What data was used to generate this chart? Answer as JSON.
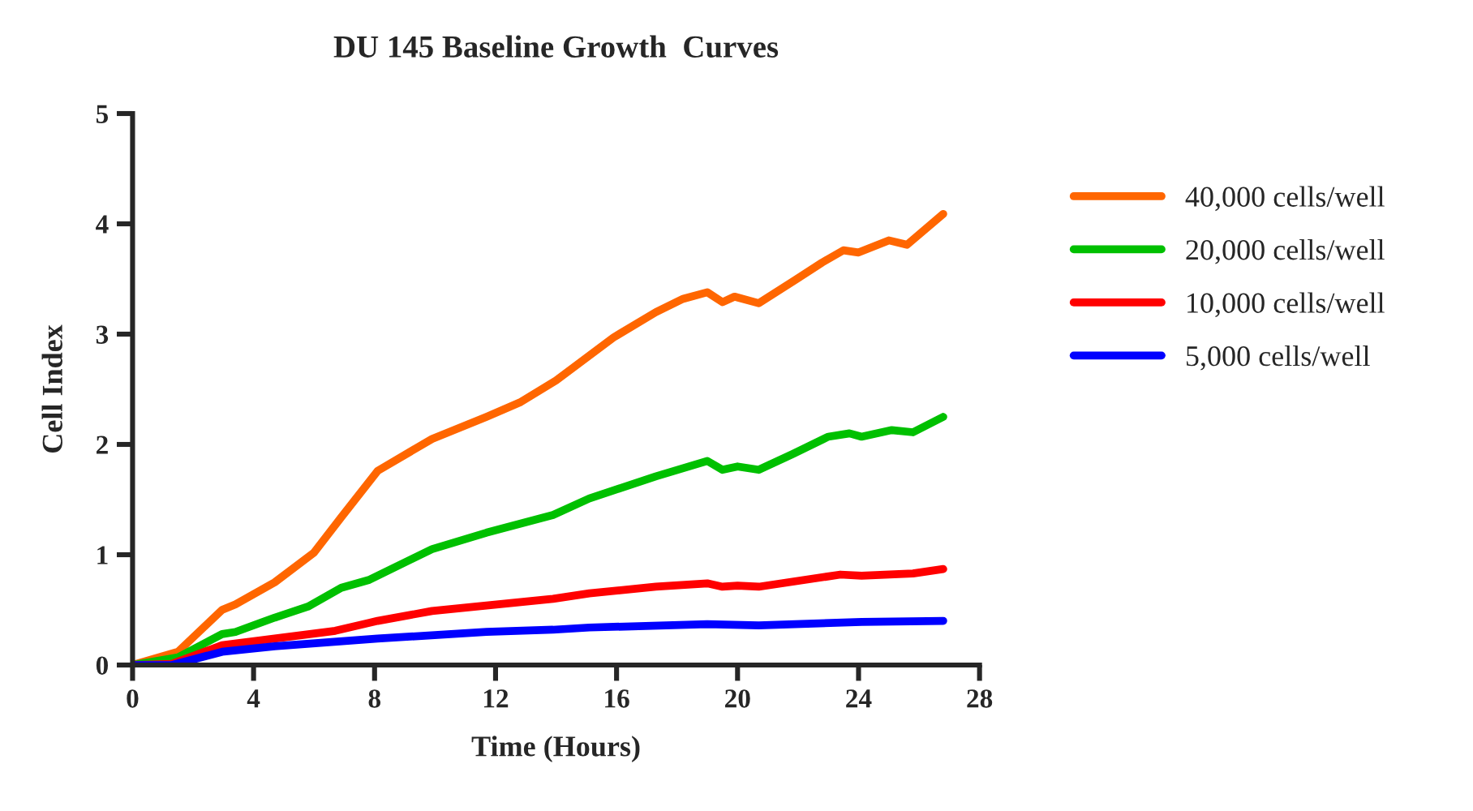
{
  "chart_data": {
    "type": "line",
    "title": "DU 145 Baseline Growth  Curves",
    "xlabel": "Time (Hours)",
    "ylabel": "Cell Index",
    "xlim": [
      0,
      28
    ],
    "xticks": [
      0,
      4,
      8,
      12,
      16,
      20,
      24,
      28
    ],
    "ylim": [
      0,
      5
    ],
    "yticks": [
      0,
      1,
      2,
      3,
      4,
      5
    ],
    "grid": false,
    "legend": "right",
    "marker": "none",
    "line_style": "solid",
    "series": [
      {
        "name": "40,000 cells/well",
        "color": "#ff6600",
        "x": [
          0,
          1.5,
          2.96,
          3.4,
          4.7,
          6.0,
          6.9,
          8.1,
          9.9,
          11.7,
          12.8,
          14.0,
          15.9,
          17.3,
          18.2,
          19.0,
          19.5,
          19.9,
          20.7,
          21.9,
          22.8,
          23.5,
          24.0,
          25.0,
          25.6,
          26.8
        ],
        "values": [
          0,
          0.12,
          0.5,
          0.55,
          0.75,
          1.02,
          1.34,
          1.76,
          2.05,
          2.25,
          2.38,
          2.58,
          2.97,
          3.2,
          3.32,
          3.38,
          3.29,
          3.34,
          3.28,
          3.49,
          3.65,
          3.76,
          3.74,
          3.85,
          3.81,
          4.09
        ]
      },
      {
        "name": "20,000 cells/well",
        "color": "#00c000",
        "x": [
          0,
          1.5,
          2.96,
          3.4,
          4.7,
          5.8,
          6.9,
          7.8,
          9.9,
          11.7,
          13.9,
          15.1,
          17.3,
          19.0,
          19.5,
          20.0,
          20.7,
          21.8,
          23.0,
          23.7,
          24.1,
          25.1,
          25.8,
          26.8
        ],
        "values": [
          0,
          0.07,
          0.28,
          0.3,
          0.43,
          0.53,
          0.7,
          0.77,
          1.05,
          1.2,
          1.36,
          1.51,
          1.71,
          1.85,
          1.77,
          1.8,
          1.77,
          1.91,
          2.07,
          2.1,
          2.07,
          2.13,
          2.11,
          2.25
        ]
      },
      {
        "name": "10,000 cells/well",
        "color": "#ff0000",
        "x": [
          0,
          1.3,
          2.96,
          4.7,
          6.7,
          8.1,
          9.9,
          11.7,
          13.9,
          15.1,
          17.3,
          19.0,
          19.5,
          20.0,
          20.7,
          23.4,
          24.1,
          25.8,
          26.8
        ],
        "values": [
          0,
          0.01,
          0.18,
          0.24,
          0.31,
          0.4,
          0.49,
          0.54,
          0.6,
          0.65,
          0.71,
          0.74,
          0.71,
          0.72,
          0.71,
          0.82,
          0.81,
          0.83,
          0.87
        ]
      },
      {
        "name": "5,000 cells/well",
        "color": "#0000ff",
        "x": [
          0,
          1.3,
          2.96,
          4.7,
          8.1,
          11.7,
          13.9,
          15.1,
          19.0,
          20.7,
          24.1,
          26.8
        ],
        "values": [
          0,
          0,
          0.12,
          0.17,
          0.24,
          0.3,
          0.32,
          0.34,
          0.37,
          0.36,
          0.39,
          0.4
        ]
      }
    ]
  }
}
